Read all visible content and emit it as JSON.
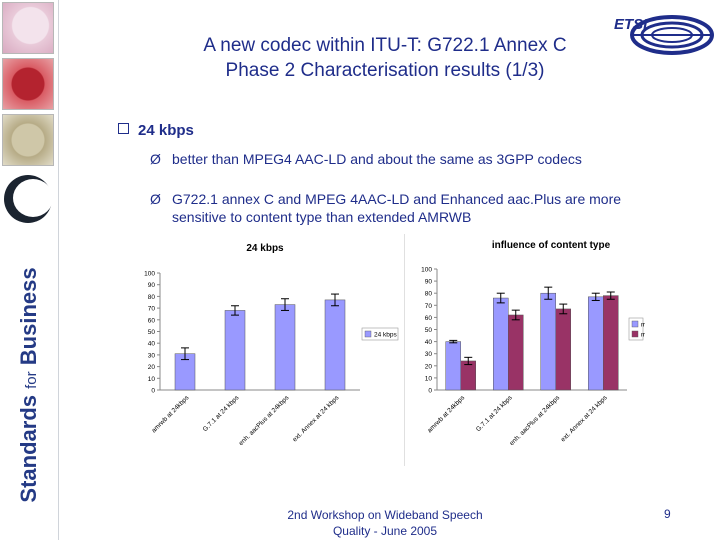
{
  "slide": {
    "title_line1": "A new codec within ITU-T: G722.1 Annex C",
    "title_line2": "Phase 2 Characterisation results (1/3)",
    "bullet": "24 kbps",
    "subbullets": [
      "better than MPEG4 AAC-LD and about the same as 3GPP codecs",
      "G722.1 annex C and MPEG 4AAC-LD and Enhanced aac.Plus are more sensitive to content type than extended AMRWB"
    ],
    "arrow_glyph": "Ø",
    "footer_line1": "2nd Workshop on Wideband Speech",
    "footer_line2": "Quality - June 2005",
    "page_number": "9",
    "sidebar_text_standards": "Standards",
    "sidebar_text_for": "for",
    "sidebar_text_business": "Business",
    "logo_text": "ETSI",
    "colors": {
      "text": "#1f2d8a",
      "music": "#9999ff",
      "mixed": "#993366",
      "sidebar_text": "#243a85"
    }
  },
  "chart_data": [
    {
      "type": "bar",
      "title": "24 kbps",
      "categories": [
        "amrwb at 24kbps",
        "G.7.1 at 24 kbps",
        "enh. aacPlus at 24kbps",
        "ext. Annex at 24 kbps"
      ],
      "series": [
        {
          "name": "24 kbps",
          "values": [
            31,
            68,
            73,
            77
          ],
          "errors": [
            5,
            4,
            5,
            5
          ]
        }
      ],
      "ylim": [
        0,
        100
      ],
      "yticks": [
        0,
        10,
        20,
        30,
        40,
        50,
        60,
        70,
        80,
        90,
        100
      ],
      "legend": "right",
      "grid": false
    },
    {
      "type": "bar",
      "title": "influence of content type",
      "categories": [
        "amrwb at 24kbps",
        "G.7.1 at 24 kbps",
        "enh. aacPlus at 24kbps",
        "ext. Annex at 24 kbps"
      ],
      "series": [
        {
          "name": "music",
          "values": [
            40,
            76,
            80,
            77
          ],
          "errors": [
            1,
            4,
            5,
            3
          ]
        },
        {
          "name": "mixed",
          "values": [
            24,
            62,
            67,
            78
          ],
          "errors": [
            3,
            4,
            4,
            3
          ]
        }
      ],
      "ylim": [
        0,
        100
      ],
      "yticks": [
        0,
        10,
        20,
        30,
        40,
        50,
        60,
        70,
        80,
        90,
        100
      ],
      "legend": "right",
      "grid": false
    }
  ]
}
